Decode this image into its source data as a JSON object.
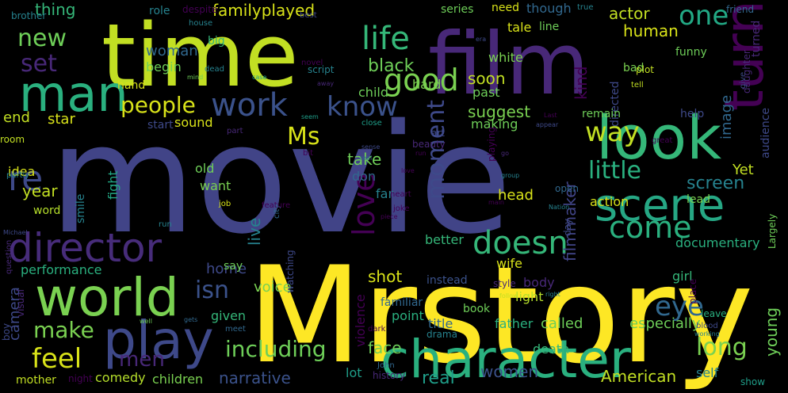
{
  "colors": {
    "background": "#000000",
    "yellow": "#fde725",
    "lime": "#b5de2b",
    "green": "#6ece58",
    "teal_green": "#35b779",
    "teal": "#1f9e89",
    "cyan_blue": "#26828e",
    "blue": "#31688e",
    "indigo": "#3e4989",
    "purple": "#482878",
    "dark_purple": "#440154"
  },
  "words": [
    {
      "text": "movie",
      "color": "#414487"
    },
    {
      "text": "Mrstory",
      "color": "#fde725"
    },
    {
      "text": "time",
      "color": "#c2df23"
    },
    {
      "text": "film",
      "color": "#482878"
    },
    {
      "text": "character",
      "color": "#2ab07f"
    },
    {
      "text": "look",
      "color": "#35b779"
    },
    {
      "text": "scene",
      "color": "#26a784"
    },
    {
      "text": "world",
      "color": "#7ad151"
    },
    {
      "text": "play",
      "color": "#3e4989"
    },
    {
      "text": "director",
      "color": "#472c7a"
    },
    {
      "text": "man",
      "color": "#2ab07f"
    },
    {
      "text": "work",
      "color": "#3b528b"
    },
    {
      "text": "turn",
      "color": "#440154"
    },
    {
      "text": "know",
      "color": "#3b528b"
    },
    {
      "text": "good",
      "color": "#7ad151"
    },
    {
      "text": "life",
      "color": "#35b779"
    },
    {
      "text": "new",
      "color": "#6ece58"
    },
    {
      "text": "one",
      "color": "#22a884"
    },
    {
      "text": "people",
      "color": "#d8e219"
    },
    {
      "text": "little",
      "color": "#2ab07f"
    },
    {
      "text": "love",
      "color": "#440154"
    },
    {
      "text": "moment",
      "color": "#3e4989"
    },
    {
      "text": "doesn",
      "color": "#35b779"
    },
    {
      "text": "come",
      "color": "#2ab07f"
    },
    {
      "text": "Ms",
      "color": "#d8e219"
    },
    {
      "text": "way",
      "color": "#c2df23"
    },
    {
      "text": "including",
      "color": "#6ece58"
    },
    {
      "text": "make",
      "color": "#7ad151"
    },
    {
      "text": "feel",
      "color": "#d8e219"
    },
    {
      "text": "men",
      "color": "#482878"
    },
    {
      "text": "isn",
      "color": "#3b528b"
    },
    {
      "text": "eye",
      "color": "#31688e"
    },
    {
      "text": "long",
      "color": "#7ad151"
    },
    {
      "text": "re",
      "color": "#3e4989"
    },
    {
      "text": "set",
      "color": "#482878"
    },
    {
      "text": "black",
      "color": "#6ece58"
    },
    {
      "text": "screen",
      "color": "#26828e"
    },
    {
      "text": "filmmaker",
      "color": "#414487"
    },
    {
      "text": "kind",
      "color": "#440154"
    },
    {
      "text": "human",
      "color": "#d8e219"
    },
    {
      "text": "actor",
      "color": "#c2df23"
    },
    {
      "text": "familyplayed",
      "color": "#d8e219"
    },
    {
      "text": "thing",
      "color": "#35b779"
    },
    {
      "text": "live",
      "color": "#26828e"
    },
    {
      "text": "narrative",
      "color": "#3b528b"
    },
    {
      "text": "women",
      "color": "#3b528b"
    },
    {
      "text": "American",
      "color": "#c2df23"
    },
    {
      "text": "real",
      "color": "#1f9e89"
    },
    {
      "text": "face",
      "color": "#6ece58"
    },
    {
      "text": "shot",
      "color": "#d8e219"
    },
    {
      "text": "young",
      "color": "#6ece58"
    },
    {
      "text": "suggest",
      "color": "#7ad151"
    },
    {
      "text": "soon",
      "color": "#c2df23"
    },
    {
      "text": "take",
      "color": "#6ece58"
    },
    {
      "text": "year",
      "color": "#c2df23"
    },
    {
      "text": "camera",
      "color": "#3e4989"
    },
    {
      "text": "home",
      "color": "#3e4989"
    },
    {
      "text": "voice",
      "color": "#7ad151"
    },
    {
      "text": "documentary",
      "color": "#2ab07f"
    },
    {
      "text": "especially",
      "color": "#6ece58"
    },
    {
      "text": "called",
      "color": "#6ece58"
    },
    {
      "text": "image",
      "color": "#31688e"
    },
    {
      "text": "head",
      "color": "#d8e219"
    },
    {
      "text": "star",
      "color": "#d8e219"
    },
    {
      "text": "end",
      "color": "#c2df23"
    },
    {
      "text": "woman",
      "color": "#31688e"
    },
    {
      "text": "begin",
      "color": "#6ece58"
    },
    {
      "text": "role",
      "color": "#26828e"
    },
    {
      "text": "big",
      "color": "#35b779"
    },
    {
      "text": "brother",
      "color": "#26828e"
    },
    {
      "text": "performance",
      "color": "#2ab07f"
    },
    {
      "text": "comedy",
      "color": "#b5de2b"
    },
    {
      "text": "children",
      "color": "#7ad151"
    },
    {
      "text": "death",
      "color": "#35b779"
    },
    {
      "text": "self",
      "color": "#26828e"
    },
    {
      "text": "show",
      "color": "#1f9e89"
    },
    {
      "text": "mother",
      "color": "#c2df23"
    },
    {
      "text": "visual",
      "color": "#482878"
    },
    {
      "text": "boy",
      "color": "#3e4989"
    },
    {
      "text": "given",
      "color": "#35b779"
    },
    {
      "text": "lot",
      "color": "#1f9e89"
    },
    {
      "text": "point",
      "color": "#2ab07f"
    },
    {
      "text": "violence",
      "color": "#440154"
    },
    {
      "text": "familiar",
      "color": "#31688e"
    },
    {
      "text": "title",
      "color": "#31688e"
    },
    {
      "text": "father",
      "color": "#2ab07f"
    },
    {
      "text": "girl",
      "color": "#35b779"
    },
    {
      "text": "body",
      "color": "#482878"
    },
    {
      "text": "light",
      "color": "#b5de2b"
    },
    {
      "text": "wife",
      "color": "#d8e219"
    },
    {
      "text": "better",
      "color": "#35b779"
    },
    {
      "text": "action",
      "color": "#d8e219"
    },
    {
      "text": "far",
      "color": "#26828e"
    },
    {
      "text": "don",
      "color": "#31688e"
    },
    {
      "text": "old",
      "color": "#6ece58"
    },
    {
      "text": "want",
      "color": "#7ad151"
    },
    {
      "text": "fight",
      "color": "#22a884"
    },
    {
      "text": "smile",
      "color": "#26828e"
    },
    {
      "text": "word",
      "color": "#b5de2b"
    },
    {
      "text": "idea",
      "color": "#d8e219"
    },
    {
      "text": "sound",
      "color": "#d8e219"
    },
    {
      "text": "start",
      "color": "#3e4989"
    },
    {
      "text": "past",
      "color": "#6ece58"
    },
    {
      "text": "making",
      "color": "#6ece58"
    },
    {
      "text": "white",
      "color": "#7ad151"
    },
    {
      "text": "hard",
      "color": "#7ad151"
    },
    {
      "text": "child",
      "color": "#6ece58"
    },
    {
      "text": "though",
      "color": "#31688e"
    },
    {
      "text": "tale",
      "color": "#d8e219"
    },
    {
      "text": "line",
      "color": "#6ece58"
    },
    {
      "text": "series",
      "color": "#6ece58"
    },
    {
      "text": "need",
      "color": "#d8e219"
    },
    {
      "text": "funny",
      "color": "#6ece58"
    },
    {
      "text": "directed",
      "color": "#3e4989"
    },
    {
      "text": "remain",
      "color": "#6ece58"
    },
    {
      "text": "help",
      "color": "#3e4989"
    },
    {
      "text": "audience",
      "color": "#3e4989"
    },
    {
      "text": "lead",
      "color": "#7ad151"
    },
    {
      "text": "Yet",
      "color": "#c2df23"
    },
    {
      "text": "friend",
      "color": "#31688e"
    },
    {
      "text": "turned",
      "color": "#482878"
    },
    {
      "text": "bad",
      "color": "#7ad151"
    },
    {
      "text": "hand",
      "color": "#d8e219"
    },
    {
      "text": "part",
      "color": "#482878"
    },
    {
      "text": "beauty",
      "color": "#482878"
    },
    {
      "text": "playing",
      "color": "#440154"
    },
    {
      "text": "place",
      "color": "#440154"
    },
    {
      "text": "say",
      "color": "#6ece58"
    },
    {
      "text": "instead",
      "color": "#3b528b"
    },
    {
      "text": "book",
      "color": "#6ece58"
    },
    {
      "text": "drama",
      "color": "#26828e"
    },
    {
      "text": "style",
      "color": "#482878"
    },
    {
      "text": "watching",
      "color": "#3e4989"
    },
    {
      "text": "day",
      "color": "#3e4989"
    },
    {
      "text": "open",
      "color": "#31688e"
    },
    {
      "text": "leave",
      "color": "#2ab07f"
    },
    {
      "text": "blood",
      "color": "#3e4989"
    },
    {
      "text": "room",
      "color": "#c2df23"
    },
    {
      "text": "Largely",
      "color": "#6ece58"
    },
    {
      "text": "despite",
      "color": "#440154"
    },
    {
      "text": "script",
      "color": "#26828e"
    },
    {
      "text": "heart",
      "color": "#440154"
    },
    {
      "text": "city",
      "color": "#31688e"
    },
    {
      "text": "joke",
      "color": "#440154"
    },
    {
      "text": "dark",
      "color": "#440154"
    },
    {
      "text": "history",
      "color": "#482878"
    },
    {
      "text": "close",
      "color": "#1f9e89"
    },
    {
      "text": "art",
      "color": "#3e4989"
    },
    {
      "text": "job",
      "color": "#d8e219"
    },
    {
      "text": "novel",
      "color": "#440154"
    },
    {
      "text": "daughter",
      "color": "#482878"
    },
    {
      "text": "tell",
      "color": "#c2df23"
    },
    {
      "text": "plot",
      "color": "#c2df23"
    },
    {
      "text": "give",
      "color": "#3e4989"
    },
    {
      "text": "true",
      "color": "#26828e"
    },
    {
      "text": "best",
      "color": "#3e4989"
    },
    {
      "text": "great",
      "color": "#440154"
    },
    {
      "text": "night",
      "color": "#440154"
    },
    {
      "text": "John",
      "color": "#31688e"
    },
    {
      "text": "house",
      "color": "#26828e"
    },
    {
      "text": "feature",
      "color": "#440154"
    },
    {
      "text": "question",
      "color": "#482878"
    },
    {
      "text": "dead",
      "color": "#26828e"
    },
    {
      "text": "partly",
      "color": "#26828e"
    },
    {
      "text": "working",
      "color": "#26828e"
    },
    {
      "text": "meet",
      "color": "#31688e"
    },
    {
      "text": "gets",
      "color": "#31688e"
    },
    {
      "text": "follow",
      "color": "#c2df23"
    },
    {
      "text": "run",
      "color": "#26828e"
    },
    {
      "text": "case",
      "color": "#1f9e89"
    },
    {
      "text": "run",
      "color": "#440154"
    },
    {
      "text": "well",
      "color": "#6ece58"
    },
    {
      "text": "piece",
      "color": "#440154"
    },
    {
      "text": "Michael",
      "color": "#3e4989"
    },
    {
      "text": "group",
      "color": "#26828e"
    },
    {
      "text": "right",
      "color": "#26828e"
    },
    {
      "text": "mind",
      "color": "#6ece58"
    },
    {
      "text": "Nation",
      "color": "#26828e"
    },
    {
      "text": "appear",
      "color": "#3e4989"
    },
    {
      "text": "seem",
      "color": "#1f9e89"
    },
    {
      "text": "sense",
      "color": "#3e4989"
    },
    {
      "text": "away",
      "color": "#482878"
    },
    {
      "text": "main",
      "color": "#440154"
    },
    {
      "text": "love",
      "color": "#440154"
    },
    {
      "text": "real",
      "color": "#31688e"
    },
    {
      "text": "era",
      "color": "#3e4989"
    },
    {
      "text": "Last",
      "color": "#440154"
    },
    {
      "text": "bit",
      "color": "#440154"
    },
    {
      "text": "go",
      "color": "#482878"
    }
  ]
}
